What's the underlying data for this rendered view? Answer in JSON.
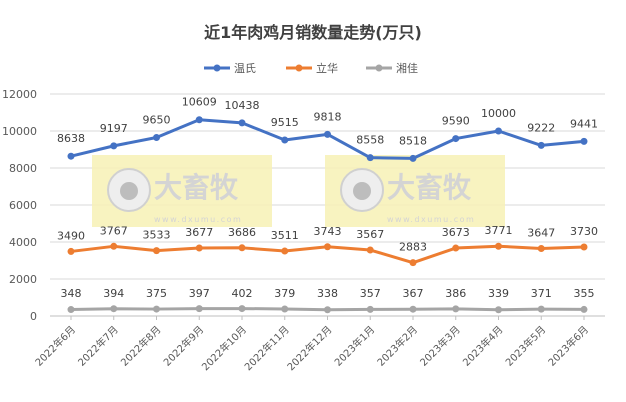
{
  "chart_data": {
    "type": "line",
    "title": "近1年肉鸡月销数量走势(万只)",
    "xlabel": "",
    "ylabel": "",
    "ylim": [
      0,
      12000
    ],
    "yticks": [
      0,
      2000,
      4000,
      6000,
      8000,
      10000,
      12000
    ],
    "grid": true,
    "legend_position": "top",
    "categories": [
      "2022年6月",
      "2022年7月",
      "2022年8月",
      "2022年9月",
      "2022年10月",
      "2022年11月",
      "2022年12月",
      "2023年1月",
      "2023年2月",
      "2023年3月",
      "2023年4月",
      "2023年5月",
      "2023年6月"
    ],
    "series": [
      {
        "name": "温氏",
        "color": "#4472C4",
        "values": [
          8638,
          9197,
          9650,
          10609,
          10438,
          9515,
          9818,
          8558,
          8518,
          9590,
          10000,
          9222,
          9441
        ]
      },
      {
        "name": "立华",
        "color": "#ED7D31",
        "values": [
          3490,
          3767,
          3533,
          3677,
          3686,
          3511,
          3743,
          3567,
          2883,
          3673,
          3771,
          3647,
          3730
        ]
      },
      {
        "name": "湘佳",
        "color": "#A5A5A5",
        "values": [
          348,
          394,
          375,
          397,
          402,
          379,
          338,
          357,
          367,
          386,
          339,
          371,
          355
        ]
      }
    ]
  },
  "watermark": {
    "brand": "大畜牧",
    "url": "www.dxumu.com"
  }
}
